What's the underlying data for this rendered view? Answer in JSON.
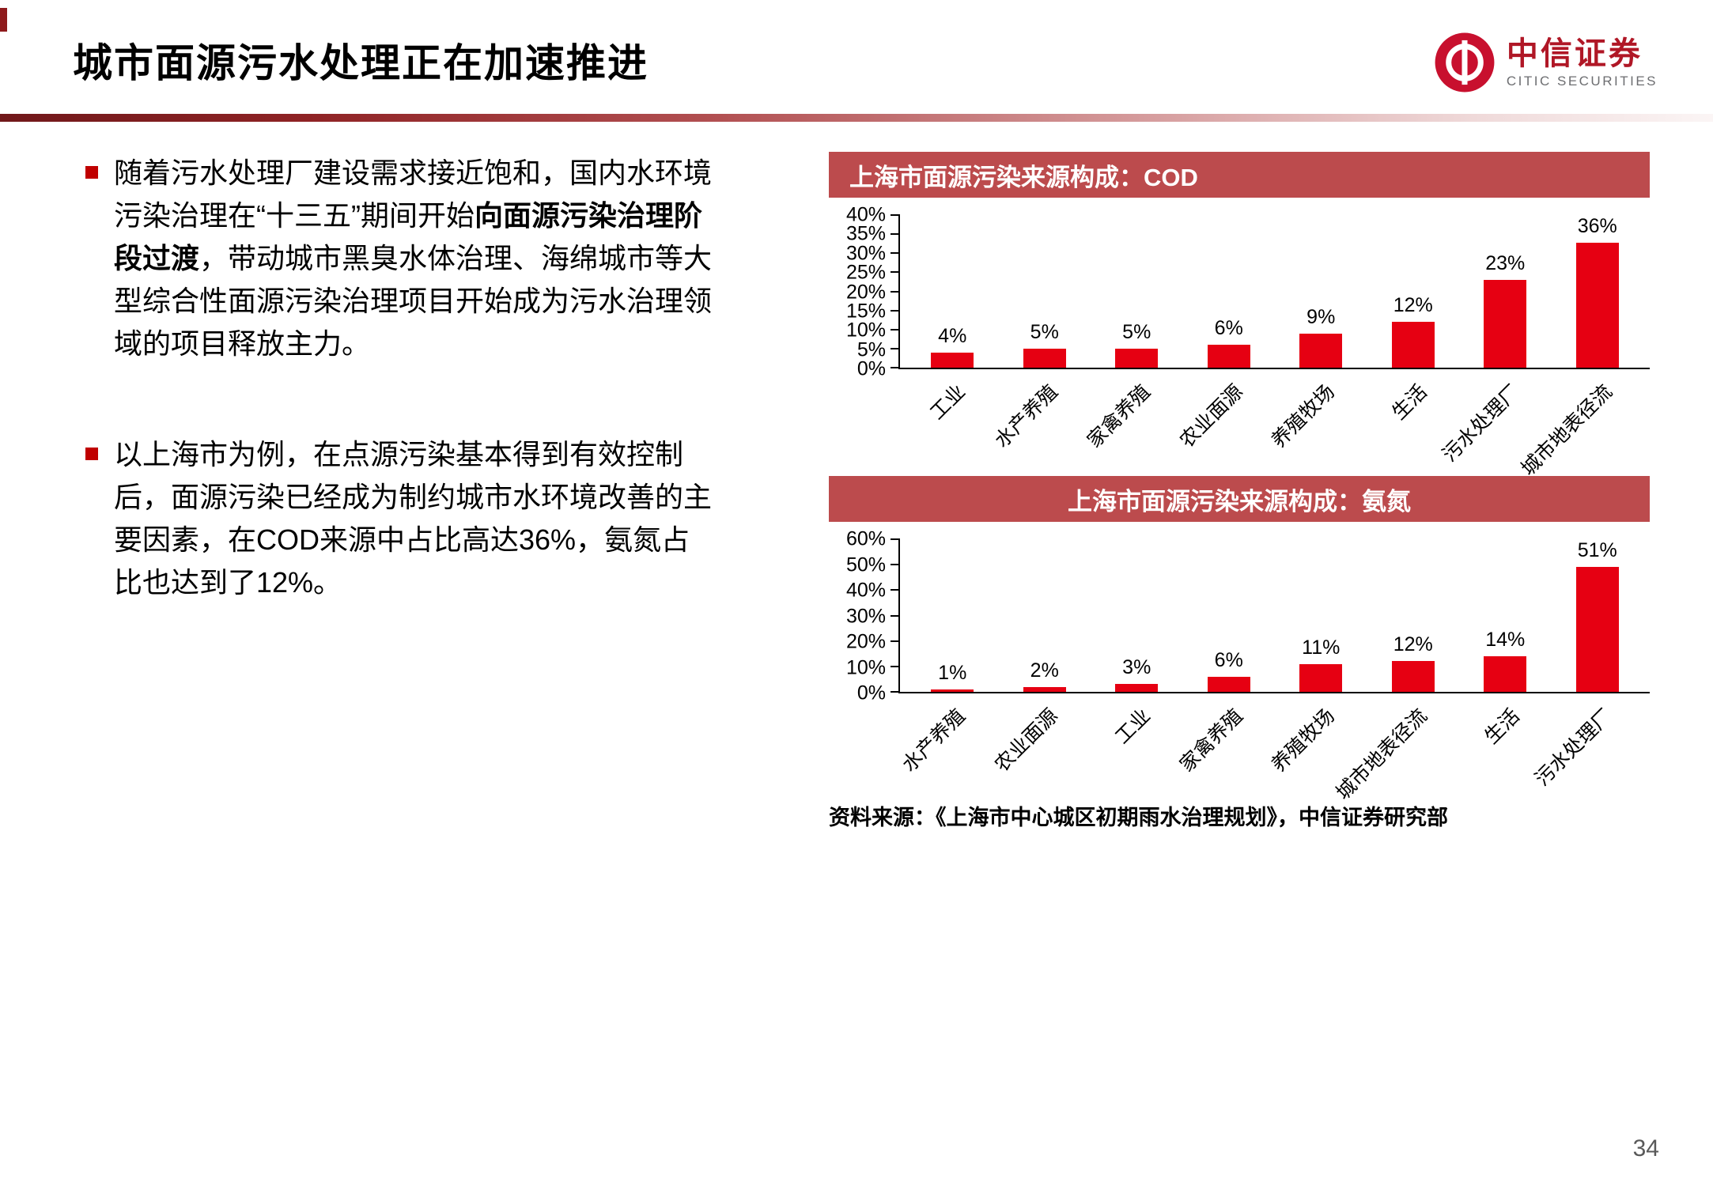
{
  "slide": {
    "title": "城市面源污水处理正在加速推进",
    "page_number": "34"
  },
  "logo": {
    "brand_cn": "中信证券",
    "brand_en": "CITIC SECURITIES"
  },
  "bullets": {
    "item1": {
      "pre": "随着污水处理厂建设需求接近饱和，国内水环境污染治理在“十三五”期间开始",
      "bold": "向面源污染治理阶段过渡",
      "post": "，带动城市黑臭水体治理、海绵城市等大型综合性面源污染治理项目开始成为污水治理领域的项目释放主力。"
    },
    "item2": {
      "text": "以上海市为例，在点源污染基本得到有效控制后，面源污染已经成为制约城市水环境改善的主要因素，在COD来源中占比高达36%，氨氮占比也达到了12%。"
    }
  },
  "chart_data": [
    {
      "type": "bar",
      "title": "上海市面源污染来源构成：COD",
      "categories": [
        "工业",
        "水产养殖",
        "家禽养殖",
        "农业面源",
        "养殖牧场",
        "生活",
        "污水处理厂",
        "城市地表径流"
      ],
      "values": [
        4,
        5,
        5,
        6,
        9,
        12,
        23,
        36
      ],
      "unit": "%",
      "ylim": [
        0,
        40
      ],
      "ytick_step": 5,
      "bar_color": "#e60012",
      "grid": false,
      "legend": false,
      "xlabel": "",
      "ylabel": ""
    },
    {
      "type": "bar",
      "title": "上海市面源污染来源构成：氨氮",
      "categories": [
        "水产养殖",
        "农业面源",
        "工业",
        "家禽养殖",
        "养殖牧场",
        "城市地表径流",
        "生活",
        "污水处理厂"
      ],
      "values": [
        1,
        2,
        3,
        6,
        11,
        12,
        14,
        51
      ],
      "unit": "%",
      "ylim": [
        0,
        60
      ],
      "ytick_step": 10,
      "bar_color": "#e60012",
      "grid": false,
      "legend": false,
      "xlabel": "",
      "ylabel": ""
    }
  ],
  "source_note": "资料来源：《上海市中心城区初期雨水治理规划》，中信证券研究部",
  "colors": {
    "bar_red": "#e60012",
    "panel_header_red": "#bc4b4d",
    "accent_red": "#c00000"
  }
}
